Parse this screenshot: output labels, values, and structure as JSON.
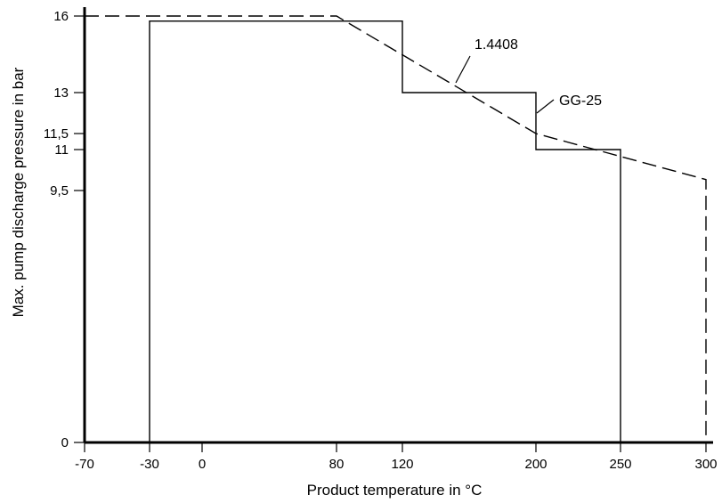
{
  "chart_data": {
    "type": "line",
    "title": "",
    "xlabel": "Product temperature in °C",
    "ylabel": "Max. pump discharge pressure in bar",
    "x_ticks": [
      {
        "value": -70,
        "label": "-70"
      },
      {
        "value": -30,
        "label": "-30"
      },
      {
        "value": 0,
        "label": "0"
      },
      {
        "value": 80,
        "label": "80"
      },
      {
        "value": 120,
        "label": "120"
      },
      {
        "value": 200,
        "label": "200"
      },
      {
        "value": 250,
        "label": "250"
      },
      {
        "value": 300,
        "label": "300"
      }
    ],
    "y_ticks": [
      {
        "value": 0,
        "label": "0"
      },
      {
        "value": 9.5,
        "label": "9,5"
      },
      {
        "value": 11,
        "label": "11"
      },
      {
        "value": 11.5,
        "label": "11,5"
      },
      {
        "value": 13,
        "label": "13"
      },
      {
        "value": 16,
        "label": "16"
      }
    ],
    "grid": false,
    "series": [
      {
        "name": "GG-25",
        "style": "solid",
        "x": [
          -30,
          -30,
          120,
          120,
          200,
          200,
          250,
          250
        ],
        "y": [
          0,
          15.8,
          15.8,
          13,
          13,
          11,
          11,
          0
        ]
      },
      {
        "name": "1.4408",
        "style": "dashed",
        "x": [
          -70,
          80,
          200,
          300,
          300
        ],
        "y": [
          16,
          16,
          11.5,
          9.9,
          0
        ]
      }
    ]
  }
}
